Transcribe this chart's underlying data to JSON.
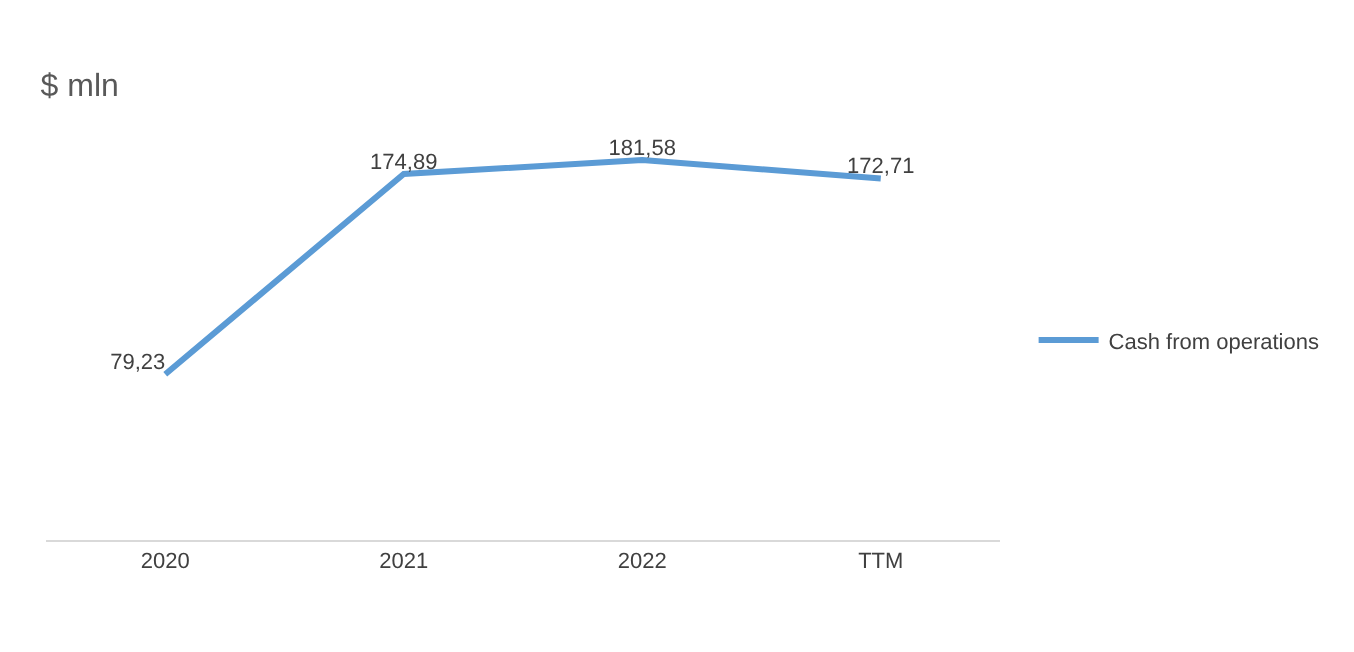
{
  "chart_data": {
    "type": "line",
    "title": "$ mln",
    "categories": [
      "2020",
      "2021",
      "2022",
      "TTM"
    ],
    "series": [
      {
        "name": "Cash from operations",
        "color": "#5b9bd5",
        "values": [
          79.23,
          174.89,
          181.58,
          172.71
        ],
        "value_labels": [
          "79,23",
          "174,89",
          "181,58",
          "172,71"
        ]
      }
    ],
    "tick_labels": "x",
    "legend": "right",
    "marker": "none",
    "line_style": "solid"
  }
}
